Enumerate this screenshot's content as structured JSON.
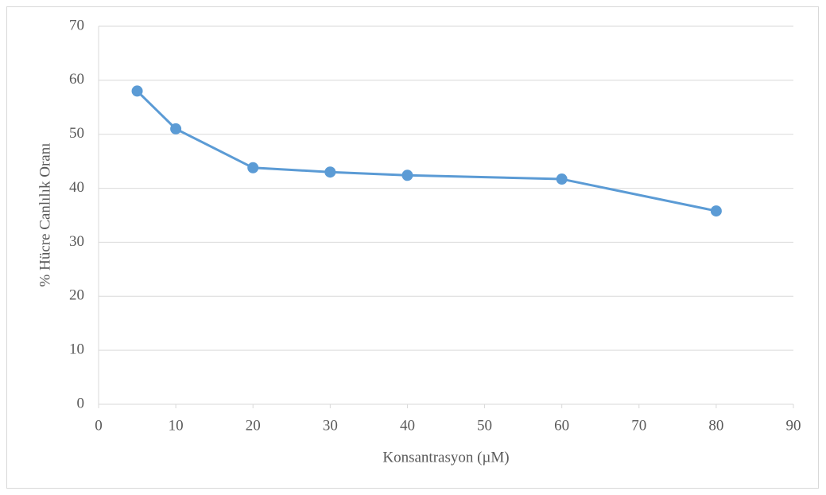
{
  "chart_data": {
    "type": "line",
    "x_label": "Konsantrasyon (µM)",
    "y_label": "% Hücre Canlılık Oranı",
    "x": [
      5,
      10,
      20,
      30,
      40,
      60,
      80
    ],
    "series": [
      {
        "name": "% Hücre Canlılık Oranı",
        "color": "#5b9bd5",
        "values": [
          58,
          51,
          43.8,
          43,
          42.4,
          41.7,
          35.8
        ]
      }
    ],
    "xlim": [
      0,
      90
    ],
    "xticks": [
      0,
      10,
      20,
      30,
      40,
      50,
      60,
      70,
      80,
      90
    ],
    "ylim": [
      0,
      70
    ],
    "yticks": [
      0,
      10,
      20,
      30,
      40,
      50,
      60,
      70
    ],
    "grid": true
  }
}
